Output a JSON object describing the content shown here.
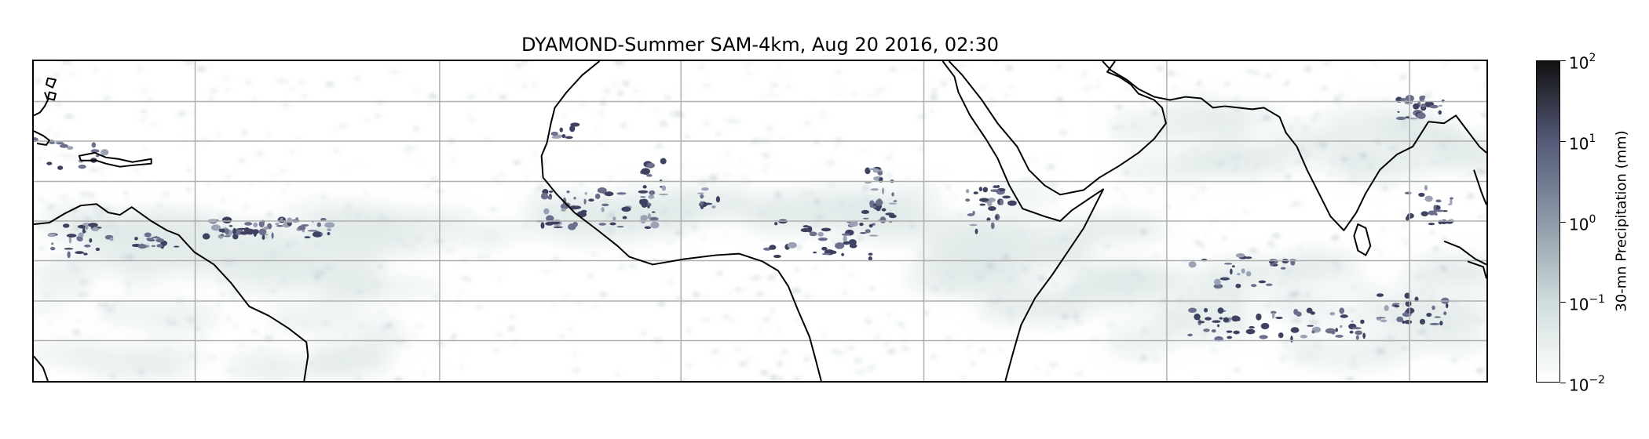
{
  "title": "DYAMOND-Summer SAM-4km, Aug 20 2016, 02:30",
  "map": {
    "description_source": "precipitation field over tropical Atlantic, Africa and Indian Ocean",
    "gridlines": true,
    "coastline_color": "#000000",
    "gridline_color": "#b0b0b0"
  },
  "colorbar": {
    "label": "30-mn Precipitation (mm)",
    "scale": "log",
    "ticks": [
      {
        "base": "10",
        "exp": "2"
      },
      {
        "base": "10",
        "exp": "1"
      },
      {
        "base": "10",
        "exp": "0"
      },
      {
        "base": "10",
        "exp": "−1"
      },
      {
        "base": "10",
        "exp": "−2"
      }
    ],
    "colors": [
      "#ffffff",
      "#cfdcdc",
      "#8c9aa8",
      "#555a78",
      "#111111"
    ]
  }
}
